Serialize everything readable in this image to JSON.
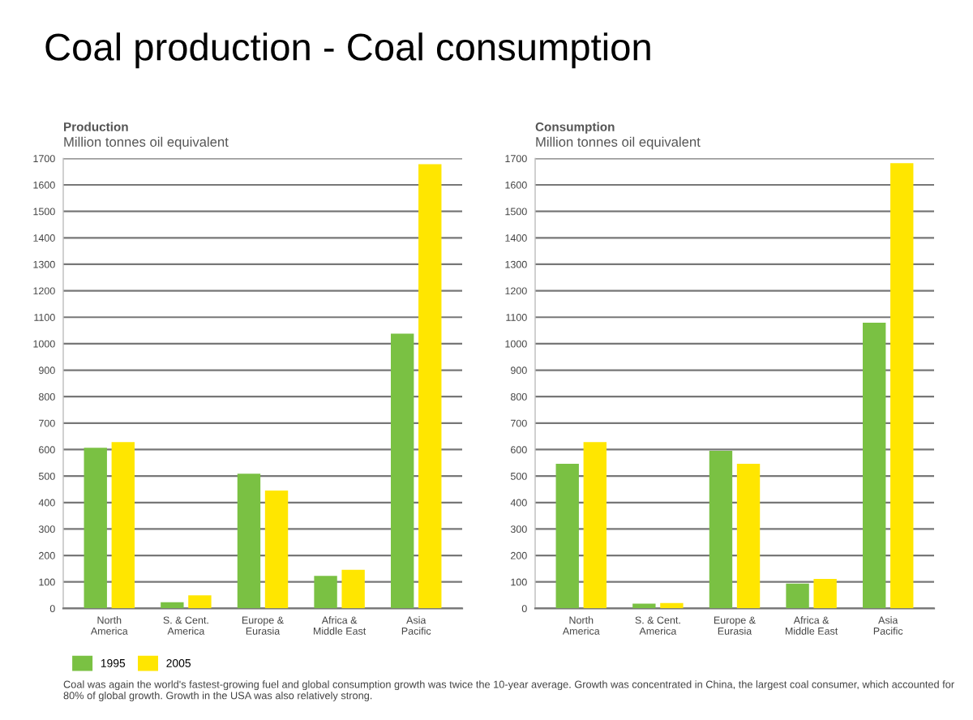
{
  "chart_data": [
    {
      "type": "bar",
      "title": "Production",
      "ylabel": "Million tonnes oil equivalent",
      "categories": [
        "North\nAmerica",
        "S. & Cent.\nAmerica",
        "Europe &\nEurasia",
        "Africa &\nMiddle East",
        "Asia\nPacific"
      ],
      "series": [
        {
          "name": "1995",
          "color": "#7ac143",
          "values": [
            607,
            23,
            509,
            123,
            1038
          ]
        },
        {
          "name": "2005",
          "color": "#ffe600",
          "values": [
            628,
            49,
            445,
            146,
            1678
          ]
        }
      ],
      "ylim": [
        0,
        1700
      ],
      "yticks": [
        0,
        100,
        200,
        300,
        400,
        500,
        600,
        700,
        800,
        900,
        1000,
        1100,
        1200,
        1300,
        1400,
        1500,
        1600,
        1700
      ],
      "grid": "y",
      "legend": "bottom",
      "annotations": [
        "Coal production - Coal consumption",
        "Coal was again the world's fastest-growing fuel and global consumption growth was twice the 10-year average. Growth was concentrated in China, the largest coal consumer, which accounted for 80% of global growth. Growth in the USA was also relatively strong."
      ]
    },
    {
      "type": "bar",
      "title": "Consumption",
      "ylabel": "Million tonnes oil equivalent",
      "categories": [
        "North\nAmerica",
        "S. & Cent.\nAmerica",
        "Europe &\nEurasia",
        "Africa &\nMiddle East",
        "Asia\nPacific"
      ],
      "series": [
        {
          "color": "#7ac143",
          "values": [
            546,
            18,
            595,
            94,
            1079
          ]
        },
        {
          "color": "#ffe600",
          "values": [
            628,
            20,
            546,
            111,
            1682
          ]
        }
      ],
      "ylim": [
        0,
        1700
      ],
      "yticks": [
        0,
        100,
        200,
        300,
        400,
        500,
        600,
        700,
        800,
        900,
        1000,
        1100,
        1200,
        1300,
        1400,
        1500,
        1600,
        1700
      ],
      "grid": "y"
    }
  ]
}
